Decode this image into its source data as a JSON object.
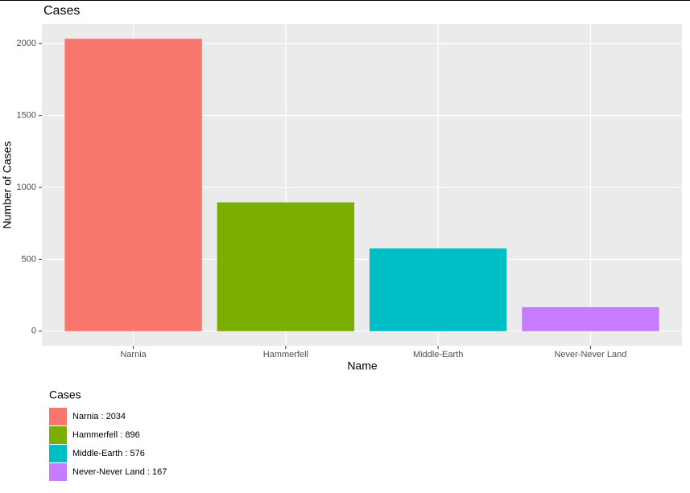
{
  "chart_data": {
    "type": "bar",
    "title": "Cases",
    "x_label": "Name",
    "y_label": "Number of Cases",
    "categories": [
      "Narnia",
      "Hammerfell",
      "Middle-Earth",
      "Never-Never Land"
    ],
    "values": [
      2034,
      896,
      576,
      167
    ],
    "colors": [
      "#f8766d",
      "#7cae00",
      "#00bfc4",
      "#c77cff"
    ],
    "ylim": [
      -101.7,
      2135.7
    ],
    "yticks": [
      0,
      500,
      1000,
      1500,
      2000
    ],
    "grid": true,
    "legend": {
      "title": "Cases",
      "position": "bottom-left",
      "labels": [
        "Narnia : 2034",
        "Hammerfell : 896",
        "Middle-Earth : 576",
        "Never-Never Land : 167"
      ]
    }
  }
}
